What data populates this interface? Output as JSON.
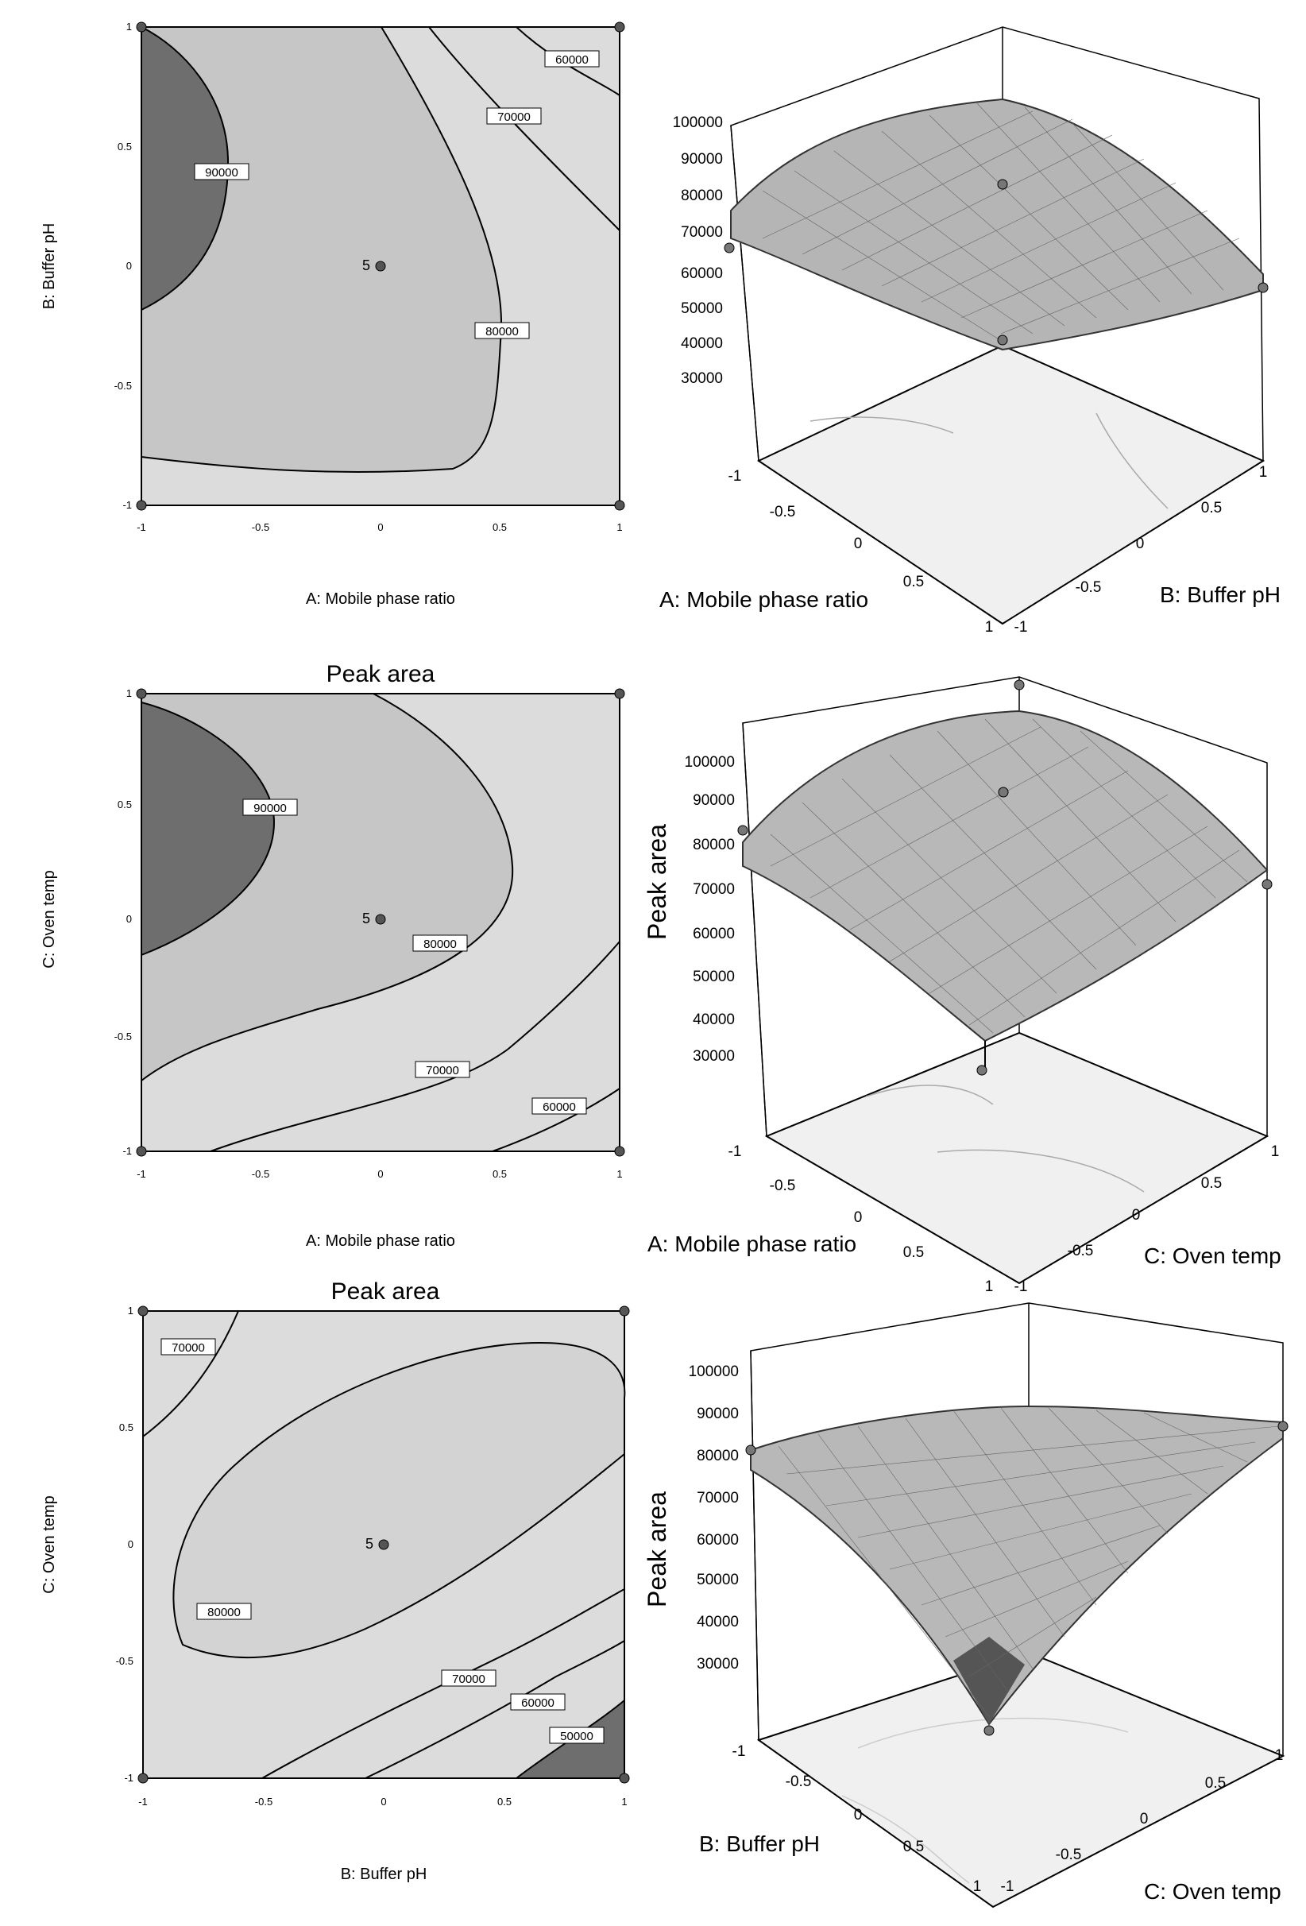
{
  "chart_data": [
    {
      "type": "contour",
      "title": "",
      "xlabel": "A: Mobile phase ratio",
      "ylabel": "B: Buffer pH",
      "xlim": [
        -1,
        1
      ],
      "ylim": [
        -1,
        1
      ],
      "xticks": [
        "-1",
        "-0.5",
        "0",
        "0.5",
        "1"
      ],
      "yticks": [
        "-1",
        "-0.5",
        "0",
        "0.5",
        "1"
      ],
      "contour_labels": [
        "60000",
        "70000",
        "80000",
        "90000"
      ],
      "center_point": {
        "x": 0,
        "y": 0,
        "label": "5"
      },
      "design_points": [
        [
          -1,
          1
        ],
        [
          1,
          1
        ],
        [
          -1,
          -1
        ],
        [
          1,
          -1
        ]
      ]
    },
    {
      "type": "surface",
      "title": "",
      "xlabel": "A: Mobile phase ratio",
      "ylabel": "B: Buffer pH",
      "zlabel": "",
      "xticks": [
        "-1",
        "-0.5",
        "0",
        "0.5",
        "1"
      ],
      "yticks": [
        "-1",
        "-0.5",
        "0",
        "0.5",
        "1"
      ],
      "zticks": [
        "30000",
        "40000",
        "50000",
        "60000",
        "70000",
        "80000",
        "90000",
        "100000"
      ],
      "zlim": [
        30000,
        100000
      ]
    },
    {
      "type": "contour",
      "title": "Peak area",
      "xlabel": "A: Mobile phase ratio",
      "ylabel": "C: Oven temp",
      "xlim": [
        -1,
        1
      ],
      "ylim": [
        -1,
        1
      ],
      "xticks": [
        "-1",
        "-0.5",
        "0",
        "0.5",
        "1"
      ],
      "yticks": [
        "-1",
        "-0.5",
        "0",
        "0.5",
        "1"
      ],
      "contour_labels": [
        "60000",
        "70000",
        "80000",
        "90000"
      ],
      "center_point": {
        "x": 0,
        "y": 0,
        "label": "5"
      },
      "design_points": [
        [
          -1,
          1
        ],
        [
          1,
          1
        ],
        [
          -1,
          -1
        ],
        [
          1,
          -1
        ]
      ]
    },
    {
      "type": "surface",
      "title": "",
      "xlabel": "A: Mobile phase ratio",
      "ylabel": "C: Oven temp",
      "zlabel": "Peak area",
      "xticks": [
        "-1",
        "-0.5",
        "0",
        "0.5",
        "1"
      ],
      "yticks": [
        "-1",
        "-0.5",
        "0",
        "0.5",
        "1"
      ],
      "zticks": [
        "30000",
        "40000",
        "50000",
        "60000",
        "70000",
        "80000",
        "90000",
        "100000"
      ],
      "zlim": [
        30000,
        100000
      ]
    },
    {
      "type": "contour",
      "title": "Peak area",
      "xlabel": "B: Buffer pH",
      "ylabel": "C: Oven temp",
      "xlim": [
        -1,
        1
      ],
      "ylim": [
        -1,
        1
      ],
      "xticks": [
        "-1",
        "-0.5",
        "0",
        "0.5",
        "1"
      ],
      "yticks": [
        "-1",
        "-0.5",
        "0",
        "0.5",
        "1"
      ],
      "contour_labels": [
        "50000",
        "60000",
        "70000",
        "70000",
        "80000"
      ],
      "center_point": {
        "x": 0,
        "y": 0,
        "label": "5"
      },
      "design_points": [
        [
          -1,
          1
        ],
        [
          1,
          1
        ],
        [
          -1,
          -1
        ],
        [
          1,
          -1
        ]
      ]
    },
    {
      "type": "surface",
      "title": "",
      "xlabel": "B: Buffer pH",
      "ylabel": "C: Oven temp",
      "zlabel": "Peak area",
      "xticks": [
        "-1",
        "-0.5",
        "0",
        "0.5",
        "1"
      ],
      "yticks": [
        "-1",
        "-0.5",
        "0",
        "0.5",
        "1"
      ],
      "zticks": [
        "30000",
        "40000",
        "50000",
        "60000",
        "70000",
        "80000",
        "90000",
        "100000"
      ],
      "zlim": [
        30000,
        100000
      ]
    }
  ]
}
